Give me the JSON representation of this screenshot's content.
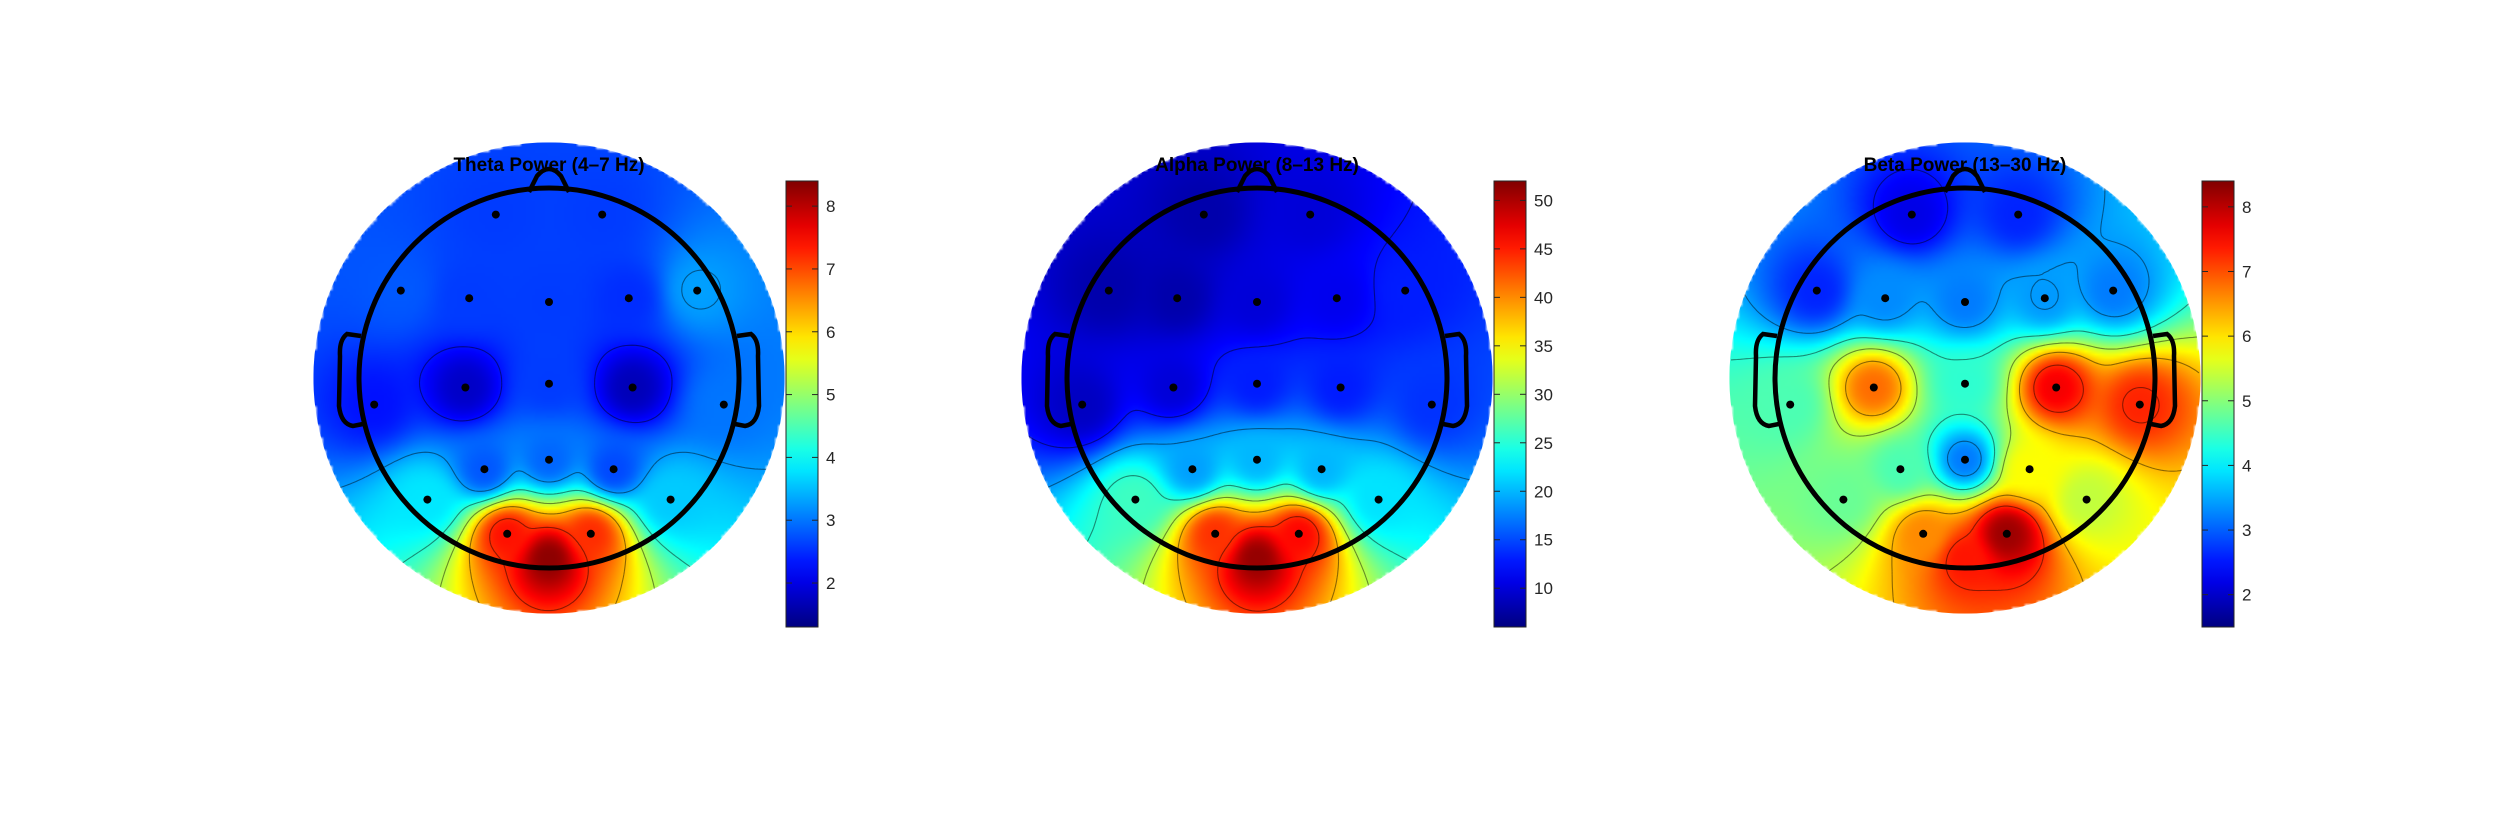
{
  "figure": {
    "background": "#ffffff",
    "colormap": "jet",
    "electrode_color": "#000000",
    "outline_color": "#000000"
  },
  "chart_data": [
    {
      "type": "heatmap",
      "subtype": "scalp-topography",
      "title": "Theta Power (4–7 Hz)",
      "colorbar": {
        "range": [
          1.3,
          8.4
        ],
        "ticks": [
          2,
          3,
          4,
          5,
          6,
          7,
          8
        ],
        "tick_labels": [
          "2",
          "3",
          "4",
          "5",
          "6",
          "7",
          "8"
        ]
      },
      "background_value": 2.3,
      "electrodes": [
        {
          "x": -0.28,
          "y": 0.86,
          "v": 2.6
        },
        {
          "x": 0.28,
          "y": 0.86,
          "v": 2.6
        },
        {
          "x": -0.78,
          "y": 0.46,
          "v": 2.8
        },
        {
          "x": -0.42,
          "y": 0.42,
          "v": 2.6
        },
        {
          "x": 0.0,
          "y": 0.4,
          "v": 2.6
        },
        {
          "x": 0.42,
          "y": 0.42,
          "v": 2.5
        },
        {
          "x": 0.78,
          "y": 0.46,
          "v": 3.3
        },
        {
          "x": -0.92,
          "y": -0.14,
          "v": 2.3
        },
        {
          "x": -0.44,
          "y": -0.05,
          "v": 1.8
        },
        {
          "x": 0.0,
          "y": -0.03,
          "v": 2.6
        },
        {
          "x": 0.44,
          "y": -0.05,
          "v": 1.7
        },
        {
          "x": 0.92,
          "y": -0.14,
          "v": 3.0
        },
        {
          "x": -0.34,
          "y": -0.48,
          "v": 2.8
        },
        {
          "x": 0.0,
          "y": -0.43,
          "v": 2.9
        },
        {
          "x": 0.34,
          "y": -0.48,
          "v": 2.7
        },
        {
          "x": -0.64,
          "y": -0.64,
          "v": 3.8
        },
        {
          "x": 0.64,
          "y": -0.64,
          "v": 3.6
        },
        {
          "x": -0.22,
          "y": -0.82,
          "v": 7.4
        },
        {
          "x": 0.22,
          "y": -0.82,
          "v": 7.2
        },
        {
          "x": 0.0,
          "y": -0.95,
          "v": 8.3
        }
      ]
    },
    {
      "type": "heatmap",
      "subtype": "scalp-topography",
      "title": "Alpha Power (8–13 Hz)",
      "colorbar": {
        "range": [
          6,
          52
        ],
        "ticks": [
          10,
          15,
          20,
          25,
          30,
          35,
          40,
          45,
          50
        ],
        "tick_labels": [
          "10",
          "15",
          "20",
          "25",
          "30",
          "35",
          "40",
          "45",
          "50"
        ]
      },
      "background_value": 9,
      "electrodes": [
        {
          "x": -0.28,
          "y": 0.86,
          "v": 8
        },
        {
          "x": 0.28,
          "y": 0.86,
          "v": 10
        },
        {
          "x": -0.78,
          "y": 0.46,
          "v": 8
        },
        {
          "x": -0.42,
          "y": 0.42,
          "v": 8
        },
        {
          "x": 0.0,
          "y": 0.4,
          "v": 10
        },
        {
          "x": 0.42,
          "y": 0.42,
          "v": 11
        },
        {
          "x": 0.78,
          "y": 0.46,
          "v": 13
        },
        {
          "x": -0.92,
          "y": -0.14,
          "v": 9
        },
        {
          "x": -0.44,
          "y": -0.05,
          "v": 10
        },
        {
          "x": 0.0,
          "y": -0.03,
          "v": 13
        },
        {
          "x": 0.44,
          "y": -0.05,
          "v": 13
        },
        {
          "x": 0.92,
          "y": -0.14,
          "v": 14
        },
        {
          "x": -0.34,
          "y": -0.48,
          "v": 19
        },
        {
          "x": 0.0,
          "y": -0.43,
          "v": 20
        },
        {
          "x": 0.34,
          "y": -0.48,
          "v": 20
        },
        {
          "x": -0.64,
          "y": -0.64,
          "v": 26
        },
        {
          "x": 0.64,
          "y": -0.64,
          "v": 22
        },
        {
          "x": -0.22,
          "y": -0.82,
          "v": 44
        },
        {
          "x": 0.22,
          "y": -0.82,
          "v": 46
        },
        {
          "x": 0.0,
          "y": -0.95,
          "v": 51
        }
      ]
    },
    {
      "type": "heatmap",
      "subtype": "scalp-topography",
      "title": "Beta Power (13–30 Hz)",
      "colorbar": {
        "range": [
          1.5,
          8.4
        ],
        "ticks": [
          2,
          3,
          4,
          5,
          6,
          7,
          8
        ],
        "tick_labels": [
          "2",
          "3",
          "4",
          "5",
          "6",
          "7",
          "8"
        ]
      },
      "background_value": 4.5,
      "electrodes": [
        {
          "x": -0.28,
          "y": 0.86,
          "v": 2.2
        },
        {
          "x": 0.28,
          "y": 0.86,
          "v": 2.6
        },
        {
          "x": -0.78,
          "y": 0.46,
          "v": 2.6
        },
        {
          "x": -0.42,
          "y": 0.42,
          "v": 3.3
        },
        {
          "x": 0.0,
          "y": 0.4,
          "v": 3.2
        },
        {
          "x": 0.42,
          "y": 0.42,
          "v": 3.4
        },
        {
          "x": 0.78,
          "y": 0.46,
          "v": 3.2
        },
        {
          "x": -0.92,
          "y": -0.14,
          "v": 4.6
        },
        {
          "x": -0.48,
          "y": -0.05,
          "v": 6.8
        },
        {
          "x": 0.0,
          "y": -0.03,
          "v": 4.4
        },
        {
          "x": 0.48,
          "y": -0.05,
          "v": 7.6
        },
        {
          "x": 0.92,
          "y": -0.14,
          "v": 7.3
        },
        {
          "x": -0.34,
          "y": -0.48,
          "v": 4.6
        },
        {
          "x": 0.0,
          "y": -0.43,
          "v": 3.2
        },
        {
          "x": 0.34,
          "y": -0.48,
          "v": 5.8
        },
        {
          "x": -0.64,
          "y": -0.64,
          "v": 4.8
        },
        {
          "x": 0.64,
          "y": -0.64,
          "v": 5.4
        },
        {
          "x": -0.22,
          "y": -0.82,
          "v": 6.6
        },
        {
          "x": 0.22,
          "y": -0.82,
          "v": 8.2
        },
        {
          "x": 0.0,
          "y": -0.95,
          "v": 7.4
        }
      ]
    }
  ]
}
